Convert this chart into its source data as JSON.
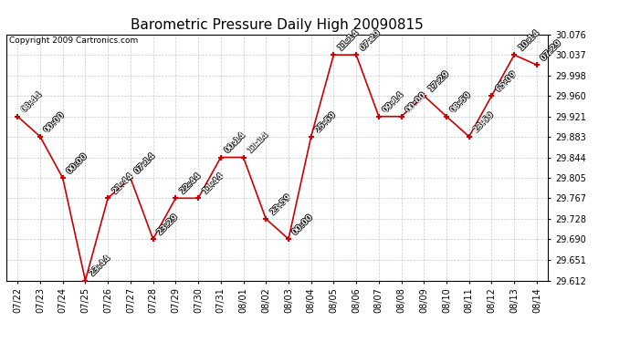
{
  "title": "Barometric Pressure Daily High 20090815",
  "copyright": "Copyright 2009 Cartronics.com",
  "x_labels": [
    "07/22",
    "07/23",
    "07/24",
    "07/25",
    "07/26",
    "07/27",
    "07/28",
    "07/29",
    "07/30",
    "07/31",
    "08/01",
    "08/02",
    "08/03",
    "08/04",
    "08/05",
    "08/06",
    "08/07",
    "08/08",
    "08/09",
    "08/10",
    "08/11",
    "08/12",
    "08/13",
    "08/14"
  ],
  "y_values": [
    29.921,
    29.883,
    29.805,
    29.612,
    29.767,
    29.805,
    29.69,
    29.767,
    29.767,
    29.844,
    29.844,
    29.728,
    29.69,
    29.883,
    30.037,
    30.037,
    29.921,
    29.921,
    29.96,
    29.921,
    29.883,
    29.96,
    30.037,
    30.018
  ],
  "time_labels": [
    "08:44",
    "00:00",
    "00:00",
    "23:44",
    "21:44",
    "07:14",
    "23:29",
    "22:44",
    "11:44",
    "00:14",
    "11:14",
    "23:59",
    "00:00",
    "25:59",
    "11:14",
    "07:29",
    "09:14",
    "00:00",
    "17:29",
    "08:59",
    "23:59",
    "65:09",
    "10:14",
    "07:29"
  ],
  "ylim_min": 29.612,
  "ylim_max": 30.076,
  "yticks": [
    29.612,
    29.651,
    29.69,
    29.728,
    29.767,
    29.805,
    29.844,
    29.883,
    29.921,
    29.96,
    29.998,
    30.037,
    30.076
  ],
  "bg_color": "#ffffff",
  "plot_bg_color": "#ffffff",
  "line_color": "#cc0000",
  "marker_color": "#cc0000",
  "grid_color": "#bbbbbb",
  "title_fontsize": 11,
  "label_fontsize": 6.5,
  "tick_fontsize": 7,
  "copyright_fontsize": 6.5
}
